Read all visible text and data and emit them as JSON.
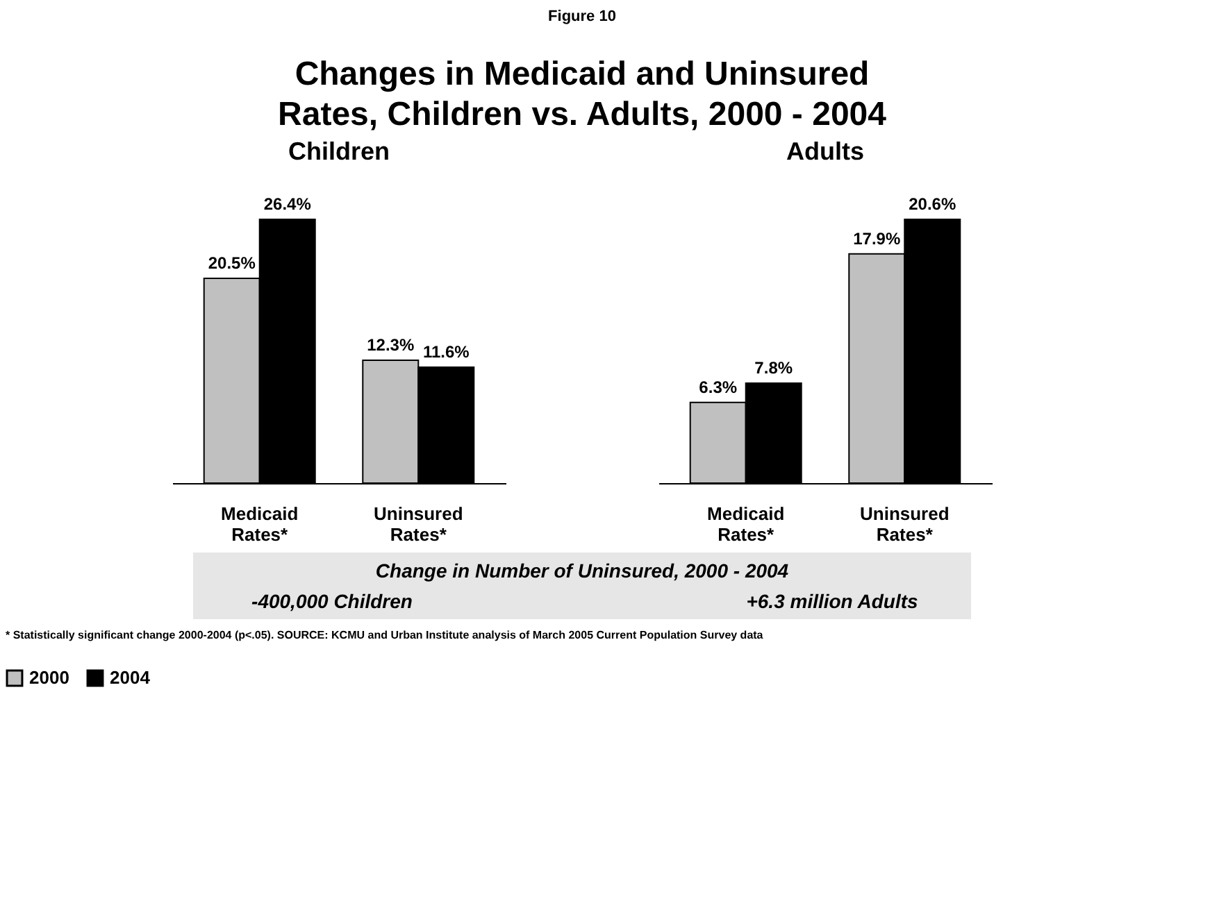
{
  "chart_data": [
    {
      "type": "bar",
      "title": "Changes in Medicaid and Uninsured Rates, Children vs. Adults, 2000 - 2004",
      "subtitle": "Children",
      "categories": [
        "Medicaid Rates*",
        "Uninsured Rates*"
      ],
      "legend": "bottom",
      "series": [
        {
          "name": "2000",
          "color": "#c0c0c0",
          "values": [
            20.5,
            12.3
          ],
          "value_labels": [
            "20.5%",
            "12.3%"
          ]
        },
        {
          "name": "2004",
          "color": "#000000",
          "values": [
            26.4,
            11.6
          ],
          "value_labels": [
            "26.4%",
            "11.6%"
          ]
        }
      ],
      "annotations": [
        "Figure 10",
        "Change in Number of Uninsured, 2000 - 2004",
        "-400,000 Children",
        "+6.3 million Adults",
        "* Statistically significant change 2000-2004 (p<.05). SOURCE: KCMU and Urban Institute analysis of March 2005 Current Population Survey data"
      ]
    },
    {
      "type": "bar",
      "subtitle": "Adults",
      "categories": [
        "Medicaid Rates*",
        "Uninsured Rates*"
      ],
      "series": [
        {
          "name": "2000",
          "color": "#c0c0c0",
          "values": [
            6.3,
            17.9
          ],
          "value_labels": [
            "6.3%",
            "17.9%"
          ]
        },
        {
          "name": "2004",
          "color": "#000000",
          "values": [
            7.8,
            20.6
          ],
          "value_labels": [
            "7.8%",
            "20.6%"
          ]
        }
      ]
    }
  ]
}
